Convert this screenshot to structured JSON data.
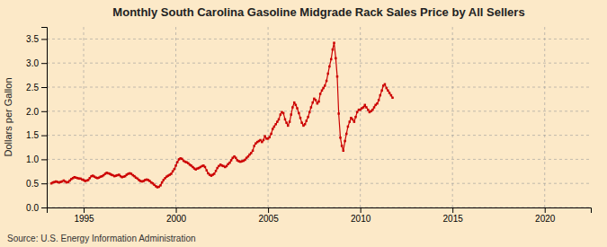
{
  "chart_data": {
    "type": "line",
    "title": "Monthly South Carolina Gasoline Midgrade Rack Sales Price by All Sellers",
    "ylabel": "Dollars per Gallon",
    "annotations": [
      "Source: U.S. Energy Information Administration"
    ],
    "color": "#cc0000",
    "marker": "square",
    "line_style": "solid",
    "grid": true,
    "xlim": [
      1993.0,
      2022.5
    ],
    "ylim": [
      0.0,
      3.75
    ],
    "xticks": [
      1995,
      2000,
      2005,
      2010,
      2015,
      2020
    ],
    "yticks": [
      {
        "value": 0.0,
        "label": "0.0"
      },
      0.5,
      {
        "value": 1.0,
        "label": "1.0"
      },
      1.5,
      {
        "value": 2.0,
        "label": "2.0"
      },
      2.5,
      {
        "value": 3.0,
        "label": "3.0"
      },
      3.5
    ],
    "x": [
      1993.25,
      1993.33,
      1993.42,
      1993.5,
      1993.58,
      1993.67,
      1993.75,
      1993.83,
      1993.92,
      1994.0,
      1994.08,
      1994.17,
      1994.25,
      1994.33,
      1994.42,
      1994.5,
      1994.58,
      1994.67,
      1994.75,
      1994.83,
      1994.92,
      1995.0,
      1995.08,
      1995.17,
      1995.25,
      1995.33,
      1995.42,
      1995.5,
      1995.58,
      1995.67,
      1995.75,
      1995.83,
      1995.92,
      1996.0,
      1996.08,
      1996.17,
      1996.25,
      1996.33,
      1996.42,
      1996.5,
      1996.58,
      1996.67,
      1996.75,
      1996.83,
      1996.92,
      1997.0,
      1997.08,
      1997.17,
      1997.25,
      1997.33,
      1997.42,
      1997.5,
      1997.58,
      1997.67,
      1997.75,
      1997.83,
      1997.92,
      1998.0,
      1998.08,
      1998.17,
      1998.25,
      1998.33,
      1998.42,
      1998.5,
      1998.58,
      1998.67,
      1998.75,
      1998.83,
      1998.92,
      1999.0,
      1999.08,
      1999.17,
      1999.25,
      1999.33,
      1999.42,
      1999.5,
      1999.58,
      1999.67,
      1999.75,
      1999.83,
      1999.92,
      2000.0,
      2000.08,
      2000.17,
      2000.25,
      2000.33,
      2000.42,
      2000.5,
      2000.58,
      2000.67,
      2000.75,
      2000.83,
      2000.92,
      2001.0,
      2001.08,
      2001.17,
      2001.25,
      2001.33,
      2001.42,
      2001.5,
      2001.58,
      2001.67,
      2001.75,
      2001.83,
      2001.92,
      2002.0,
      2002.08,
      2002.17,
      2002.25,
      2002.33,
      2002.42,
      2002.5,
      2002.58,
      2002.67,
      2002.75,
      2002.83,
      2002.92,
      2003.0,
      2003.08,
      2003.17,
      2003.25,
      2003.33,
      2003.42,
      2003.5,
      2003.58,
      2003.67,
      2003.75,
      2003.83,
      2003.92,
      2004.0,
      2004.08,
      2004.17,
      2004.25,
      2004.33,
      2004.42,
      2004.5,
      2004.58,
      2004.67,
      2004.75,
      2004.83,
      2004.92,
      2005.0,
      2005.08,
      2005.17,
      2005.25,
      2005.33,
      2005.42,
      2005.5,
      2005.58,
      2005.67,
      2005.75,
      2005.83,
      2005.92,
      2006.0,
      2006.08,
      2006.17,
      2006.25,
      2006.33,
      2006.42,
      2006.5,
      2006.58,
      2006.67,
      2006.75,
      2006.83,
      2006.92,
      2007.0,
      2007.08,
      2007.17,
      2007.25,
      2007.33,
      2007.42,
      2007.5,
      2007.58,
      2007.67,
      2007.75,
      2007.83,
      2007.92,
      2008.0,
      2008.08,
      2008.17,
      2008.25,
      2008.33,
      2008.42,
      2008.5,
      2008.58,
      2008.67,
      2008.75,
      2008.83,
      2008.92,
      2009.0,
      2009.08,
      2009.17,
      2009.25,
      2009.33,
      2009.42,
      2009.5,
      2009.58,
      2009.67,
      2009.75,
      2009.83,
      2009.92,
      2010.0,
      2010.08,
      2010.17,
      2010.25,
      2010.33,
      2010.42,
      2010.5,
      2010.58,
      2010.67,
      2010.75,
      2010.83,
      2010.92,
      2011.0,
      2011.08,
      2011.17,
      2011.25,
      2011.33,
      2011.42,
      2011.5,
      2011.58,
      2011.67,
      2011.75
    ],
    "values": [
      0.5,
      0.52,
      0.53,
      0.54,
      0.53,
      0.52,
      0.53,
      0.54,
      0.56,
      0.54,
      0.52,
      0.53,
      0.56,
      0.59,
      0.61,
      0.63,
      0.62,
      0.61,
      0.6,
      0.6,
      0.58,
      0.57,
      0.55,
      0.56,
      0.57,
      0.61,
      0.65,
      0.66,
      0.64,
      0.62,
      0.61,
      0.62,
      0.64,
      0.65,
      0.67,
      0.7,
      0.72,
      0.71,
      0.7,
      0.68,
      0.67,
      0.65,
      0.66,
      0.67,
      0.68,
      0.65,
      0.63,
      0.64,
      0.65,
      0.68,
      0.7,
      0.71,
      0.7,
      0.67,
      0.65,
      0.62,
      0.6,
      0.57,
      0.55,
      0.54,
      0.55,
      0.57,
      0.58,
      0.57,
      0.55,
      0.52,
      0.5,
      0.47,
      0.44,
      0.42,
      0.43,
      0.46,
      0.52,
      0.57,
      0.61,
      0.64,
      0.66,
      0.68,
      0.7,
      0.75,
      0.8,
      0.87,
      0.94,
      1.0,
      1.02,
      1.01,
      0.97,
      0.95,
      0.94,
      0.92,
      0.89,
      0.87,
      0.84,
      0.81,
      0.79,
      0.81,
      0.82,
      0.84,
      0.86,
      0.87,
      0.84,
      0.77,
      0.71,
      0.68,
      0.66,
      0.68,
      0.7,
      0.76,
      0.82,
      0.86,
      0.89,
      0.87,
      0.86,
      0.84,
      0.86,
      0.9,
      0.93,
      0.98,
      1.03,
      1.06,
      1.03,
      0.98,
      0.96,
      0.95,
      0.96,
      0.97,
      0.99,
      1.03,
      1.06,
      1.1,
      1.13,
      1.18,
      1.28,
      1.33,
      1.36,
      1.38,
      1.4,
      1.36,
      1.4,
      1.48,
      1.43,
      1.43,
      1.46,
      1.53,
      1.63,
      1.68,
      1.73,
      1.78,
      1.83,
      1.93,
      1.98,
      1.96,
      1.83,
      1.76,
      1.7,
      1.78,
      1.93,
      2.08,
      2.18,
      2.13,
      2.06,
      1.96,
      1.86,
      1.76,
      1.7,
      1.73,
      1.8,
      1.88,
      1.98,
      2.08,
      2.18,
      2.26,
      2.23,
      2.16,
      2.2,
      2.36,
      2.43,
      2.48,
      2.53,
      2.63,
      2.78,
      2.93,
      3.08,
      3.28,
      3.42,
      3.1,
      2.72,
      1.95,
      1.45,
      1.28,
      1.18,
      1.38,
      1.53,
      1.68,
      1.78,
      1.86,
      1.83,
      1.78,
      1.88,
      1.98,
      2.03,
      2.03,
      2.06,
      2.08,
      2.13,
      2.08,
      2.03,
      1.98,
      2.0,
      2.03,
      2.08,
      2.13,
      2.16,
      2.23,
      2.33,
      2.43,
      2.53,
      2.56,
      2.48,
      2.43,
      2.38,
      2.33,
      2.28
    ]
  }
}
